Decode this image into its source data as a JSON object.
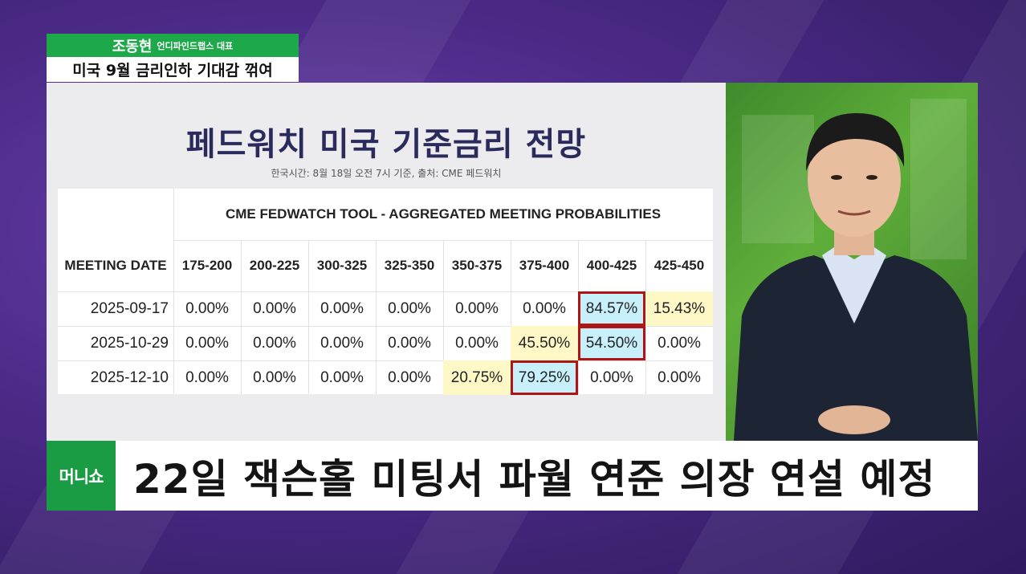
{
  "lower_third": {
    "name": "조동현",
    "role": "언디파인드랩스 대표",
    "topic": "미국 9월 금리인하 기대감 꺾여"
  },
  "board": {
    "title": "페드워치 미국 기준금리 전망",
    "subtitle": "한국시간: 8월 18일 오전 7시 기준, 출처: CME 페드워치",
    "table": {
      "header": "CME FEDWATCH TOOL - AGGREGATED MEETING PROBABILITIES",
      "date_header": "MEETING DATE",
      "columns": [
        "175-200",
        "200-225",
        "300-325",
        "325-350",
        "350-375",
        "375-400",
        "400-425",
        "425-450"
      ],
      "rows": [
        {
          "date": "2025-09-17",
          "values": [
            "0.00%",
            "0.00%",
            "0.00%",
            "0.00%",
            "0.00%",
            "0.00%",
            "84.57%",
            "15.43%"
          ]
        },
        {
          "date": "2025-10-29",
          "values": [
            "0.00%",
            "0.00%",
            "0.00%",
            "0.00%",
            "0.00%",
            "45.50%",
            "54.50%",
            "0.00%"
          ]
        },
        {
          "date": "2025-12-10",
          "values": [
            "0.00%",
            "0.00%",
            "0.00%",
            "0.00%",
            "20.75%",
            "79.25%",
            "0.00%",
            "0.00%"
          ]
        }
      ],
      "highlight_colors": {
        "yellow": "#fdf8c6",
        "cyan": "#c7f0fb",
        "red_box": "#b01515"
      }
    }
  },
  "caption": {
    "logo": "머니쇼",
    "text": "22일 잭슨홀 미팅서 파월 연준 의장 연설 예정"
  },
  "colors": {
    "brand_green": "#1da84a",
    "background_purple": "#4b2a86",
    "title_navy": "#2a2a5c"
  }
}
